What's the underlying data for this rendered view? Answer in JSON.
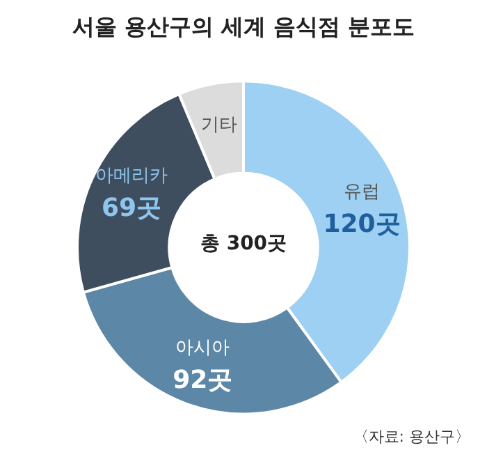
{
  "chart_data": {
    "type": "donut",
    "title": "서울 용산구의 세계 음식점 분포도",
    "categories": [
      "유럽",
      "아시아",
      "아메리카",
      "기타"
    ],
    "values": [
      120,
      92,
      69,
      19
    ],
    "colors": [
      "#9dd0f2",
      "#5d87a6",
      "#3e4e5e",
      "#dcdcdc"
    ],
    "value_labels": [
      "120곳",
      "92곳",
      "69곳",
      null
    ],
    "annotations": [
      "총 300곳",
      "〈자료: 용산구〉"
    ],
    "legend": false
  }
}
